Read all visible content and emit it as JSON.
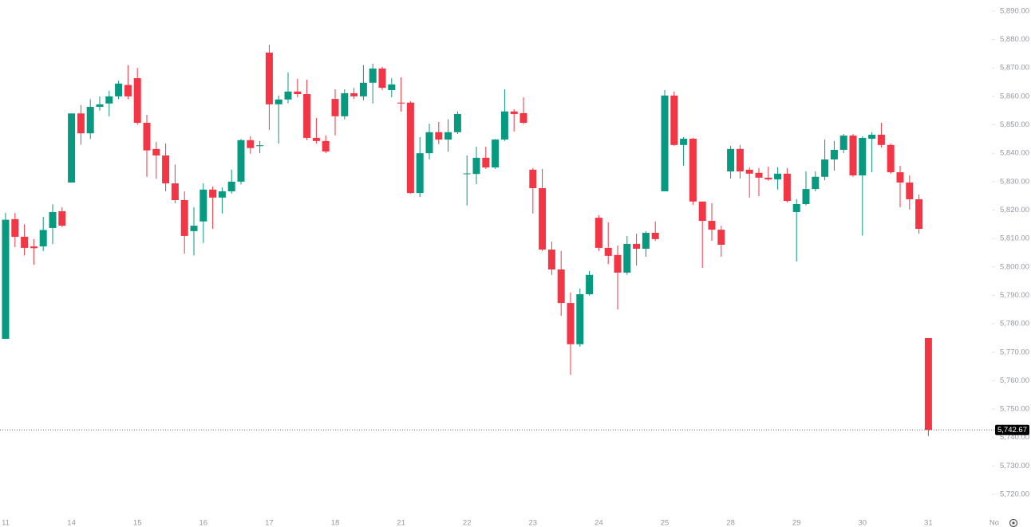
{
  "chart_data": {
    "type": "candlestick",
    "categories": [
      "11",
      null,
      null,
      null,
      null,
      null,
      null,
      "14",
      null,
      null,
      null,
      null,
      null,
      null,
      "15",
      null,
      null,
      null,
      null,
      null,
      null,
      "16",
      null,
      null,
      null,
      null,
      null,
      null,
      "17",
      null,
      null,
      null,
      null,
      null,
      null,
      "18",
      null,
      null,
      null,
      null,
      null,
      null,
      "21",
      null,
      null,
      null,
      null,
      null,
      null,
      "22",
      null,
      null,
      null,
      null,
      null,
      null,
      "23",
      null,
      null,
      null,
      null,
      null,
      null,
      "24",
      null,
      null,
      null,
      null,
      null,
      null,
      "25",
      null,
      null,
      null,
      null,
      null,
      null,
      "28",
      null,
      null,
      null,
      null,
      null,
      null,
      "29",
      null,
      null,
      null,
      null,
      null,
      null,
      "30",
      null,
      null,
      null,
      null,
      null,
      null,
      "31",
      null,
      null,
      null,
      null,
      null,
      null,
      "No"
    ],
    "open": [
      5774.7,
      5816.8,
      5810.6,
      5807.2,
      5807.2,
      5813.7,
      5819.6,
      5829.7,
      5854,
      5847,
      5856.3,
      5857.5,
      5860,
      5864,
      5866.4,
      5850.7,
      5841.5,
      5839.2,
      5829.4,
      5823.5,
      5812.6,
      5816,
      5827.2,
      5824.4,
      5826.6,
      5830,
      5844.6,
      5842.5,
      5875.4,
      5857.2,
      5858.9,
      5861.7,
      5860.8,
      5845.4,
      5844.3,
      5859.1,
      5853,
      5861.1,
      5860,
      5864.8,
      5869.8,
      5862.2,
      5857.8,
      5857.8,
      5826,
      5840,
      5847.4,
      5844.8,
      5847.4,
      5832.7,
      5832.7,
      5838.4,
      5835,
      5844.8,
      5854.7,
      5854.1,
      5834.2,
      5827.7,
      5806.1,
      5799.1,
      5787.3,
      5772.8,
      5790.4,
      5817.3,
      5806.7,
      5804.2,
      5798,
      5808.1,
      5806.4,
      5812,
      5826.6,
      5860.3,
      5842.9,
      5845.1,
      5823,
      5816.2,
      5813.1,
      5833.6,
      5841.5,
      5834.2,
      5833.1,
      5831.4,
      5830.8,
      5832.8,
      5819.3,
      5822.1,
      5827.4,
      5831.7,
      5837.8,
      5841.2,
      5846.2,
      5832.2,
      5845.1,
      5846.5,
      5842.9,
      5833.3,
      5829.7,
      5823.8,
      5775,
      null,
      null,
      null,
      null,
      null,
      null,
      null
    ],
    "high": [
      5819,
      5819,
      5815,
      5809.8,
      5817.6,
      5822,
      5821,
      5854,
      5857,
      5859,
      5860,
      5862,
      5865.5,
      5871,
      5870,
      5853.5,
      5844,
      5843.4,
      5836,
      5826.6,
      5821,
      5829.4,
      5828.3,
      5828,
      5834.2,
      5845,
      5846,
      5844.3,
      5878.2,
      5860.3,
      5868.4,
      5866.2,
      5865.9,
      5852.4,
      5846.3,
      5862.5,
      5862.5,
      5863,
      5871,
      5871.5,
      5870.4,
      5866.4,
      5866.7,
      5858.3,
      5845.7,
      5850.4,
      5851,
      5851.9,
      5854.7,
      5839.2,
      5842.3,
      5842.3,
      5845,
      5862.5,
      5855.5,
      5859.7,
      5834.8,
      5834.5,
      5808.9,
      5805.6,
      5791,
      5792.4,
      5798.6,
      5818.2,
      5815.7,
      5807.5,
      5810.9,
      5811.7,
      5812.6,
      5816,
      5862.2,
      5861.7,
      5845.7,
      5845.4,
      5823,
      5822.4,
      5814.5,
      5842.6,
      5842.9,
      5835,
      5834.8,
      5835.3,
      5835,
      5834.8,
      5823.8,
      5833.6,
      5833.6,
      5844.8,
      5844.3,
      5846.8,
      5846.8,
      5846,
      5847.4,
      5850.7,
      5843.4,
      5835.6,
      5832.2,
      5825.5,
      5775,
      null,
      null,
      null,
      null,
      null,
      null,
      null
    ],
    "low": [
      5774.7,
      5807,
      5804,
      5800.8,
      5805.6,
      5808,
      5814,
      5829.7,
      5843,
      5845,
      5855,
      5853,
      5859,
      5859,
      5850,
      5831.7,
      5831,
      5826.6,
      5822.4,
      5804.7,
      5804,
      5808.4,
      5813.4,
      5818.8,
      5825.8,
      5829,
      5839.8,
      5840,
      5848.2,
      5843.4,
      5857.5,
      5859.7,
      5844.6,
      5843.4,
      5840,
      5846.3,
      5851.9,
      5859.1,
      5858.6,
      5857.5,
      5862.2,
      5859.7,
      5854.6,
      5825.8,
      5824.6,
      5837.8,
      5843.2,
      5840.6,
      5846.8,
      5821.6,
      5829.1,
      5834.5,
      5834.5,
      5844.3,
      5847.6,
      5850.2,
      5818.8,
      5805.6,
      5797.2,
      5782.8,
      5762,
      5771.9,
      5789.9,
      5805.6,
      5801,
      5785,
      5797.2,
      5800.5,
      5803.6,
      5809.2,
      5826.6,
      5842.6,
      5835.6,
      5821.8,
      5799.7,
      5809.2,
      5803.6,
      5831.1,
      5831.1,
      5824.4,
      5824.9,
      5830.3,
      5827.2,
      5822.7,
      5801.9,
      5821.6,
      5826.6,
      5830.5,
      5833.9,
      5840,
      5831.7,
      5811,
      5833.3,
      5842,
      5832.8,
      5821,
      5820.2,
      5811.7,
      5740.5,
      null,
      null,
      null,
      null,
      null,
      null,
      null
    ],
    "close": [
      5816.6,
      5810.6,
      5806.7,
      5806.6,
      5813,
      5819.3,
      5814.5,
      5854,
      5847,
      5856.3,
      5857.2,
      5860,
      5864.5,
      5860,
      5850.7,
      5841,
      5839.2,
      5829.4,
      5823.5,
      5810.9,
      5814.5,
      5827.2,
      5824.4,
      5826.6,
      5830,
      5844.6,
      5841.8,
      5842.8,
      5857.2,
      5858.9,
      5861.7,
      5860.8,
      5845.4,
      5844.3,
      5840.6,
      5853,
      5861.1,
      5860,
      5864.8,
      5869.8,
      5863,
      5864.2,
      5857.5,
      5826,
      5840,
      5847.4,
      5844.8,
      5847.4,
      5853.8,
      5832.9,
      5838.4,
      5835,
      5844.8,
      5854.7,
      5853.8,
      5850.7,
      5827.7,
      5806.1,
      5799.1,
      5787.3,
      5772.8,
      5790.4,
      5797.2,
      5806.7,
      5803.9,
      5798,
      5808.1,
      5806.4,
      5812,
      5809.8,
      5860.3,
      5842.9,
      5845.1,
      5823,
      5816.2,
      5813.1,
      5807.8,
      5841.5,
      5833.6,
      5832.8,
      5831.4,
      5830.8,
      5832.8,
      5823.2,
      5822.1,
      5827.4,
      5831.7,
      5837.8,
      5841.2,
      5846.2,
      5832.2,
      5845.4,
      5846.5,
      5842.9,
      5833.3,
      5829.7,
      5823.8,
      5813.4,
      5742.67,
      null,
      null,
      null,
      null,
      null,
      null,
      null
    ],
    "up_color": "#089981",
    "down_color": "#f23645",
    "ylim": [
      5714.4,
      5893.9
    ],
    "yticks": [
      {
        "value": 5720,
        "label": "5,720.00"
      },
      {
        "value": 5730,
        "label": "5,730.00"
      },
      {
        "value": 5740,
        "label": "5,740.00"
      },
      {
        "value": 5750,
        "label": "5,750.00"
      },
      {
        "value": 5760,
        "label": "5,760.00"
      },
      {
        "value": 5770,
        "label": "5,770.00"
      },
      {
        "value": 5780,
        "label": "5,780.00"
      },
      {
        "value": 5790,
        "label": "5,790.00"
      },
      {
        "value": 5800,
        "label": "5,800.00"
      },
      {
        "value": 5810,
        "label": "5,810.00"
      },
      {
        "value": 5820,
        "label": "5,820.00"
      },
      {
        "value": 5830,
        "label": "5,830.00"
      },
      {
        "value": 5840,
        "label": "5,840.00"
      },
      {
        "value": 5850,
        "label": "5,850.00"
      },
      {
        "value": 5860,
        "label": "5,860.00"
      },
      {
        "value": 5870,
        "label": "5,870.00"
      },
      {
        "value": 5880,
        "label": "5,880.00"
      },
      {
        "value": 5890,
        "label": "5,890.00"
      }
    ],
    "last_price": {
      "value": 5742.67,
      "label": "5,742.67"
    }
  }
}
